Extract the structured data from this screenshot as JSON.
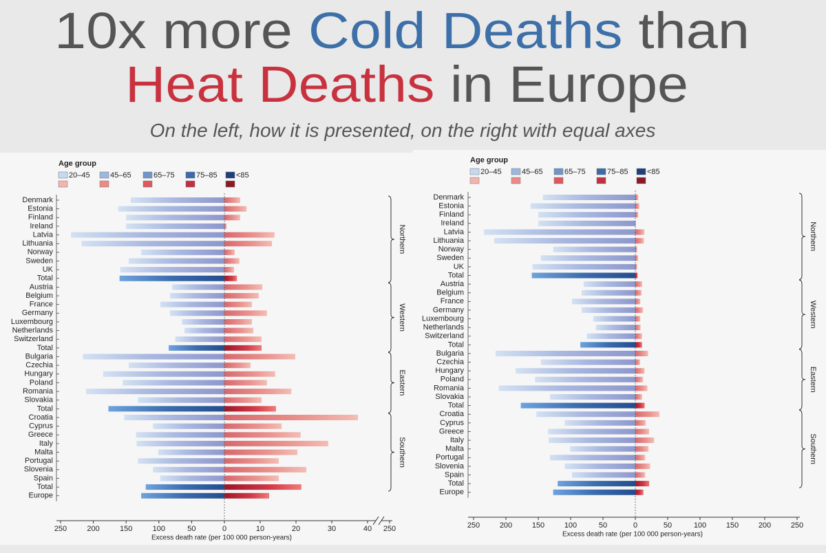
{
  "title": {
    "line1": [
      "10x more ",
      "Cold Deaths",
      " than"
    ],
    "line2": [
      "Heat Deaths",
      " in Europe"
    ]
  },
  "subtitle": "On the left, how it is presented, on the right with equal axes",
  "chart_data": [
    {
      "type": "bar",
      "legend_title": "Age group",
      "age_groups": [
        "20–45",
        "45–65",
        "65–75",
        "75–85",
        "<85"
      ],
      "cold_colors": [
        "#c6d9f0",
        "#9db8de",
        "#6f95c9",
        "#3d6aa8",
        "#1f3f7a"
      ],
      "heat_colors": [
        "#f4b4ae",
        "#ec8a86",
        "#dc5a5e",
        "#c0303e",
        "#8a1a26"
      ],
      "xlabel": "Excess death rate (per 100 000 person-years)",
      "xlim_cold": [
        250,
        0
      ],
      "xticks_cold": [
        250,
        200,
        150,
        100,
        50,
        0
      ],
      "xlim_heat": [
        0,
        40
      ],
      "xticks_heat": [
        10,
        20,
        30,
        40
      ],
      "axis_break_tick": 250,
      "groups": [
        {
          "name": "Northern",
          "categories": [
            "Denmark",
            "Estonia",
            "Finland",
            "Ireland",
            "Latvia",
            "Lithuania",
            "Norway",
            "Sweden",
            "UK"
          ],
          "cold": [
            143,
            162,
            150,
            150,
            234,
            218,
            127,
            146,
            159
          ],
          "heat": [
            4.4,
            6.2,
            4.4,
            0.6,
            14,
            13.3,
            2.9,
            4.2,
            2.7
          ],
          "total": {
            "category": "Total",
            "cold": 160,
            "heat": 3.5
          }
        },
        {
          "name": "Western",
          "categories": [
            "Austria",
            "Belgium",
            "France",
            "Germany",
            "Luxembourg",
            "Netherlands",
            "Switzerland"
          ],
          "cold": [
            80,
            83,
            98,
            83,
            65,
            61,
            75
          ],
          "heat": [
            10.6,
            9.6,
            7.7,
            11.9,
            7.7,
            8.1,
            10.4
          ],
          "total": {
            "category": "Total",
            "cold": 85,
            "heat": 10.4
          }
        },
        {
          "name": "Eastern",
          "categories": [
            "Bulgaria",
            "Czechia",
            "Hungary",
            "Poland",
            "Romania",
            "Slovakia"
          ],
          "cold": [
            216,
            146,
            185,
            155,
            211,
            132
          ],
          "heat": [
            19.8,
            7.3,
            14.2,
            11.9,
            18.7,
            10.4
          ],
          "total": {
            "category": "Total",
            "cold": 177,
            "heat": 14.4
          }
        },
        {
          "name": "Southern",
          "categories": [
            "Croatia",
            "Cyprus",
            "Greece",
            "Italy",
            "Malta",
            "Portugal",
            "Slovenia",
            "Spain"
          ],
          "cold": [
            153,
            109,
            135,
            134,
            101,
            132,
            109,
            98
          ],
          "heat": [
            37.3,
            16,
            21.3,
            29,
            20.4,
            15.2,
            22.9,
            15.2
          ],
          "total": {
            "category": "Total",
            "cold": 120,
            "heat": 21.5
          }
        }
      ],
      "overall": {
        "category": "Europe",
        "cold": 127,
        "heat": 12.5
      }
    },
    {
      "type": "bar",
      "legend_title": "Age group",
      "age_groups": [
        "20–45",
        "45–65",
        "65–75",
        "75–85",
        "<85"
      ],
      "cold_colors": [
        "#c6d9f0",
        "#9db8de",
        "#6f95c9",
        "#3d6aa8",
        "#1f3f7a"
      ],
      "heat_colors": [
        "#f4b4ae",
        "#ec8a86",
        "#dc5a5e",
        "#c0303e",
        "#8a1a26"
      ],
      "xlabel": "Excess death rate (per 100 000 person-years)",
      "xlim_cold": [
        250,
        0
      ],
      "xticks_cold": [
        250,
        200,
        150,
        100,
        50,
        0
      ],
      "xlim_heat": [
        0,
        250
      ],
      "xticks_heat": [
        50,
        100,
        150,
        200,
        250
      ],
      "groups": [
        {
          "name": "Northern",
          "categories": [
            "Denmark",
            "Estonia",
            "Finland",
            "Ireland",
            "Latvia",
            "Lithuania",
            "Norway",
            "Sweden",
            "UK"
          ],
          "cold": [
            143,
            162,
            150,
            150,
            234,
            218,
            127,
            146,
            159
          ],
          "heat": [
            4.4,
            6.2,
            4.4,
            0.6,
            14,
            13.3,
            2.9,
            4.2,
            2.7
          ],
          "total": {
            "category": "Total",
            "cold": 160,
            "heat": 3.5
          }
        },
        {
          "name": "Western",
          "categories": [
            "Austria",
            "Belgium",
            "France",
            "Germany",
            "Luxembourg",
            "Netherlands",
            "Switzerland"
          ],
          "cold": [
            80,
            83,
            98,
            83,
            65,
            61,
            75
          ],
          "heat": [
            10.6,
            9.6,
            7.7,
            11.9,
            7.7,
            8.1,
            10.4
          ],
          "total": {
            "category": "Total",
            "cold": 85,
            "heat": 10.4
          }
        },
        {
          "name": "Eastern",
          "categories": [
            "Bulgaria",
            "Czechia",
            "Hungary",
            "Poland",
            "Romania",
            "Slovakia"
          ],
          "cold": [
            216,
            146,
            185,
            155,
            211,
            132
          ],
          "heat": [
            19.8,
            7.3,
            14.2,
            11.9,
            18.7,
            10.4
          ],
          "total": {
            "category": "Total",
            "cold": 177,
            "heat": 14.4
          }
        },
        {
          "name": "Southern",
          "categories": [
            "Croatia",
            "Cyprus",
            "Greece",
            "Italy",
            "Malta",
            "Portugal",
            "Slovenia",
            "Spain"
          ],
          "cold": [
            153,
            109,
            135,
            134,
            101,
            132,
            109,
            98
          ],
          "heat": [
            37.3,
            16,
            21.3,
            29,
            20.4,
            15.2,
            22.9,
            15.2
          ],
          "total": {
            "category": "Total",
            "cold": 120,
            "heat": 21.5
          }
        }
      ],
      "overall": {
        "category": "Europe",
        "cold": 127,
        "heat": 12.5
      }
    }
  ]
}
